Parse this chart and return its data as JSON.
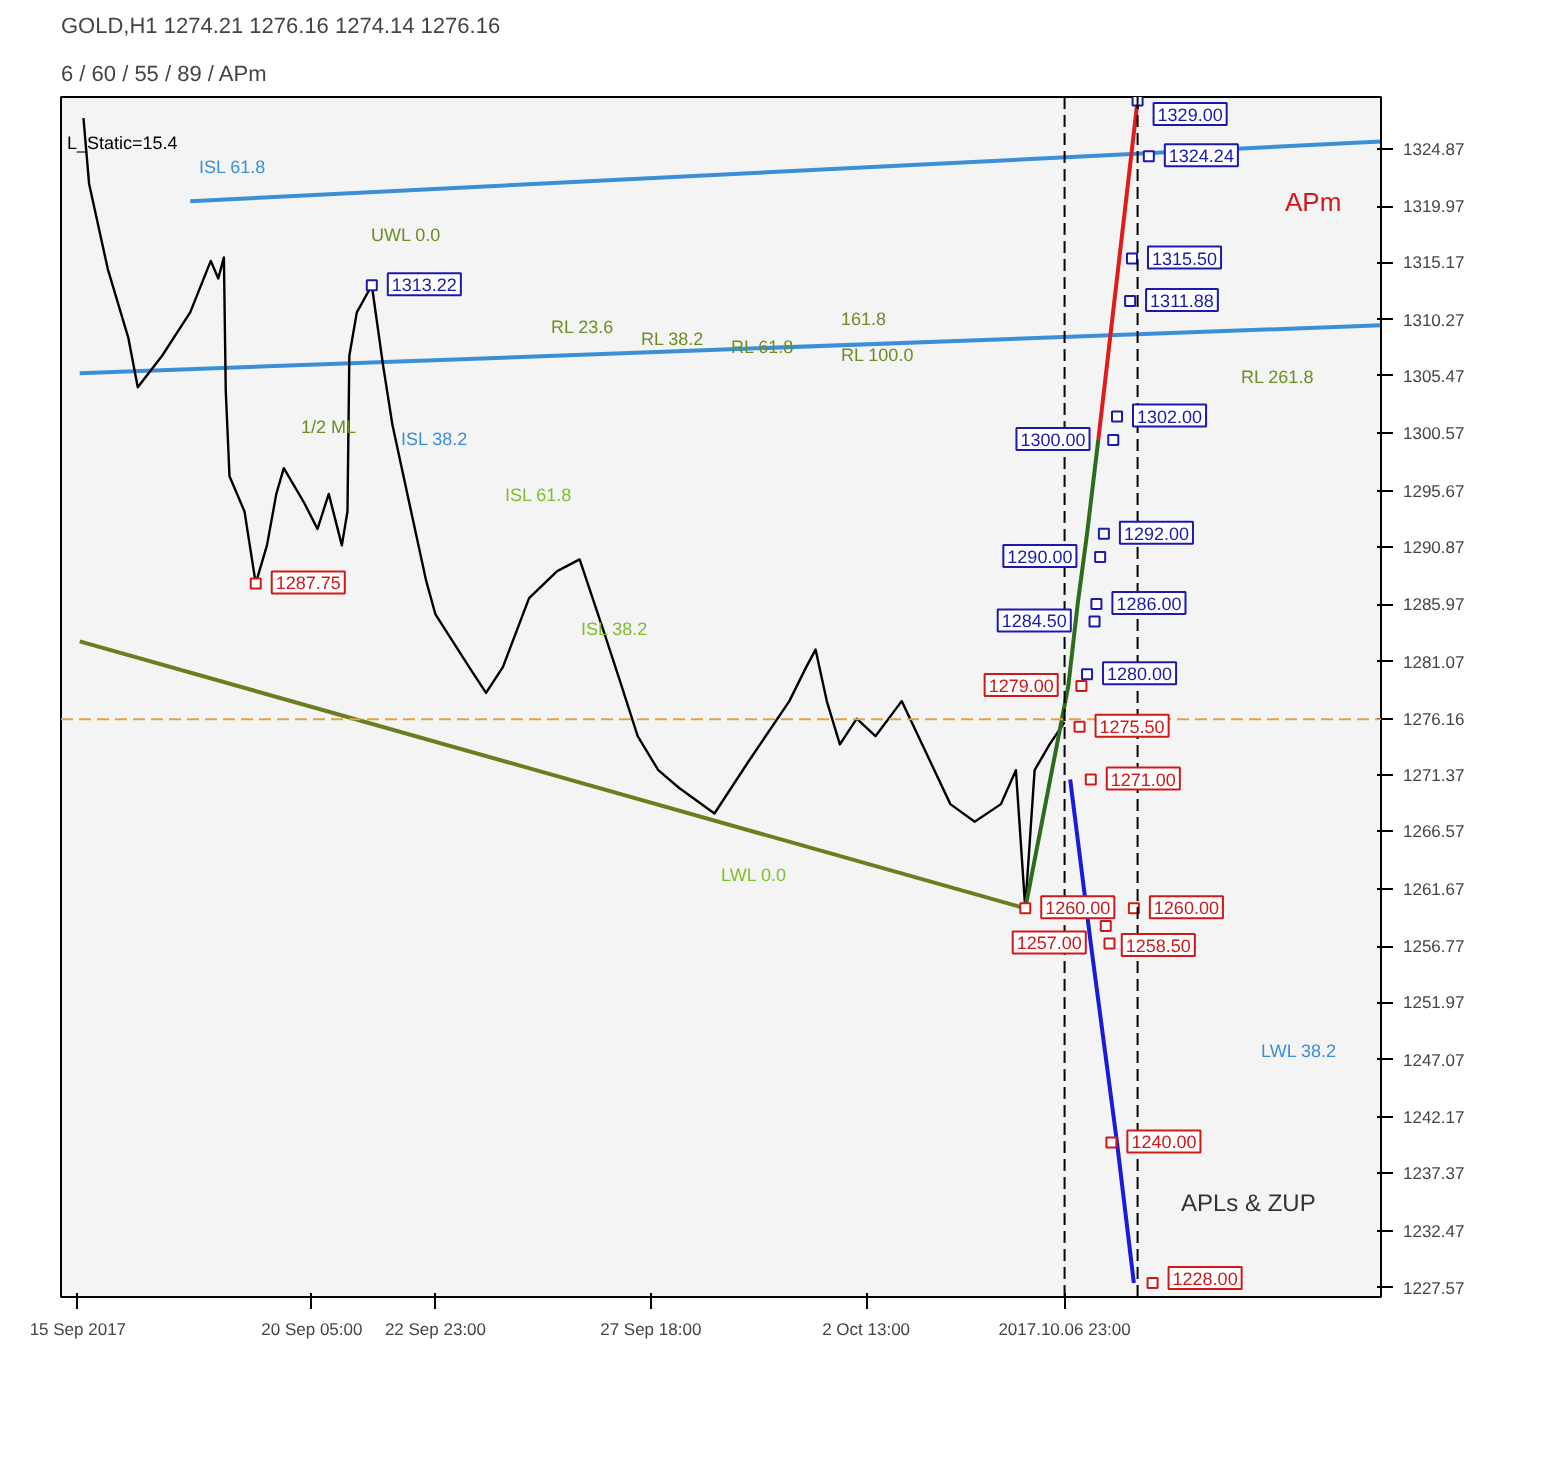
{
  "chart_data": {
    "type": "line",
    "title": "GOLD,H1  1274.21 1276.16 1274.14 1276.16",
    "subtitle": "6 / 60 / 55 / 89 / APm",
    "xlim": [
      "2017-09-14T15:00",
      "2017-10-14T00:00"
    ],
    "ylim": [
      1226.8,
      1329.3
    ],
    "xticks": [
      {
        "value": "2017-09-15T00:00",
        "label": "15 Sep 2017"
      },
      {
        "value": "2017-09-20T05:00",
        "label": "20 Sep 05:00"
      },
      {
        "value": "2017-09-22T23:00",
        "label": "22 Sep 23:00"
      },
      {
        "value": "2017-09-27T18:00",
        "label": "27 Sep 18:00"
      },
      {
        "value": "2017-10-02T13:00",
        "label": "2 Oct 13:00"
      },
      {
        "value": "2017-10-06T23:00",
        "label": "2017.10.06 23:00"
      }
    ],
    "yticks": [
      1227.57,
      1232.47,
      1237.37,
      1242.17,
      1247.07,
      1251.97,
      1256.77,
      1261.67,
      1266.57,
      1271.37,
      1276.16,
      1281.07,
      1285.97,
      1290.87,
      1295.67,
      1300.57,
      1305.47,
      1310.27,
      1315.17,
      1319.97,
      1324.87
    ],
    "grid": false,
    "series": [
      {
        "color": "#6b7d1e",
        "x": [
          "2017-09-15T01:00",
          "2017-10-06T02:00"
        ],
        "values": [
          1282.8,
          1260
        ]
      },
      {
        "color": "#3a8fd8",
        "x": [
          "2017-09-17T12:00",
          "2017-10-14T00:00"
        ],
        "values": [
          1320.4,
          1325.5
        ]
      },
      {
        "color": "#3a8fd8",
        "x": [
          "2017-09-15T01:00",
          "2017-10-14T00:00"
        ],
        "values": [
          1305.7,
          1309.8
        ]
      },
      {
        "color": "#000000",
        "x": [
          "2017-09-15T03:00",
          "2017-09-15T06:00",
          "2017-09-15T16:00",
          "2017-09-16T03:00",
          "2017-09-16T08:00",
          "2017-09-16T21:00",
          "2017-09-17T12:00",
          "2017-09-17T23:00",
          "2017-09-18T03:00",
          "2017-09-18T06:00",
          "2017-09-18T07:00",
          "2017-09-18T09:00",
          "2017-09-18T17:00",
          "2017-09-18T23:00",
          "2017-09-19T05:00",
          "2017-09-19T10:00",
          "2017-09-19T14:00",
          "2017-09-20T01:00",
          "2017-09-20T08:00",
          "2017-09-20T14:00",
          "2017-09-20T21:00",
          "2017-09-21T00:00",
          "2017-09-21T01:00",
          "2017-09-21T05:00",
          "2017-09-21T13:00",
          "2017-09-21T19:00",
          "2017-09-22T00:00",
          "2017-09-22T10:00",
          "2017-09-22T18:00",
          "2017-09-22T23:00",
          "2017-09-23T17:00",
          "2017-09-24T02:00",
          "2017-09-24T11:00",
          "2017-09-25T01:00",
          "2017-09-25T16:00",
          "2017-09-26T04:00",
          "2017-09-26T17:00",
          "2017-09-27T02:00",
          "2017-09-27T11:00",
          "2017-09-27T22:00",
          "2017-09-28T09:00",
          "2017-09-29T04:00",
          "2017-09-29T22:00",
          "2017-09-30T20:00",
          "2017-10-01T05:00",
          "2017-10-01T10:00",
          "2017-10-01T16:00",
          "2017-10-01T23:00",
          "2017-10-02T08:00",
          "2017-10-02T18:00",
          "2017-10-03T08:00",
          "2017-10-03T21:00",
          "2017-10-04T10:00",
          "2017-10-04T23:00",
          "2017-10-05T13:00",
          "2017-10-05T21:00",
          "2017-10-06T02:00",
          "2017-10-06T07:00",
          "2017-10-06T15:00",
          "2017-10-06T23:00"
        ],
        "values": [
          1327.5,
          1321.9,
          1314.6,
          1308.7,
          1304.5,
          1307.2,
          1310.9,
          1315.3,
          1313.8,
          1315.6,
          1304.2,
          1296.9,
          1293.9,
          1287.75,
          1291.0,
          1295.4,
          1297.6,
          1294.6,
          1292.4,
          1295.4,
          1291.0,
          1293.9,
          1307.2,
          1310.9,
          1313.22,
          1306.4,
          1301.3,
          1293.9,
          1288.0,
          1285.1,
          1280.6,
          1278.4,
          1280.6,
          1286.5,
          1288.8,
          1289.8,
          1283.6,
          1279.2,
          1274.7,
          1271.8,
          1270.3,
          1268.1,
          1272.5,
          1277.7,
          1280.6,
          1282.1,
          1277.7,
          1274.0,
          1276.2,
          1274.7,
          1277.7,
          1273.3,
          1268.9,
          1267.4,
          1268.9,
          1271.8,
          1260.0,
          1271.8,
          1274.0,
          1275.9
        ]
      },
      {
        "color": "#2e6b1e",
        "x": [
          "2017-10-06T02:00",
          "2017-10-07T01:00",
          "2017-10-07T06:00",
          "2017-10-07T11:00",
          "2017-10-07T17:00"
        ],
        "values": [
          1260,
          1279,
          1286,
          1292,
          1300
        ]
      },
      {
        "color": "#e01b1b",
        "x": [
          "2017-10-07T17:00",
          "2017-10-08T14:00"
        ],
        "values": [
          1300,
          1329
        ]
      },
      {
        "color": "#1a1ad8",
        "x": [
          "2017-10-07T02:00",
          "2017-10-07T13:00",
          "2017-10-08T03:00",
          "2017-10-08T12:00"
        ],
        "values": [
          1271,
          1257,
          1240,
          1228
        ]
      },
      {
        "type": "scatter",
        "color": "#1a1ab0",
        "marker": "square",
        "x": [
          "2017-10-08T14:00",
          "2017-10-08T20:00",
          "2017-10-08T11:00",
          "2017-10-08T10:00",
          "2017-10-08T03:00",
          "2017-10-08T01:00",
          "2017-10-07T20:00",
          "2017-10-07T18:00",
          "2017-10-07T16:00",
          "2017-10-07T15:00",
          "2017-10-07T11:00",
          "2017-09-21T13:00"
        ],
        "values": [
          1329.0,
          1324.24,
          1315.5,
          1311.88,
          1302.0,
          1300.0,
          1292.0,
          1290.0,
          1286.0,
          1284.5,
          1280.0,
          1313.22
        ],
        "value_labels": [
          "1329.00",
          "1324.24",
          "1315.50",
          "1311.88",
          "1302.00",
          "1300.00",
          "1292.00",
          "1290.00",
          "1286.00",
          "1284.50",
          "1280.00",
          "1313.22"
        ]
      },
      {
        "type": "scatter",
        "color": "#d01818",
        "marker": "square",
        "x": [
          "2017-10-07T08:00",
          "2017-10-07T07:00",
          "2017-10-07T13:00",
          "2017-10-06T02:00",
          "2017-10-07T21:00",
          "2017-10-07T23:00",
          "2017-10-08T00:00",
          "2017-10-08T12:00",
          "2017-10-08T22:00",
          "2017-09-18T23:00"
        ],
        "values": [
          1279.0,
          1275.5,
          1271.0,
          1260.0,
          1258.5,
          1257.0,
          1240.0,
          1260.0,
          1228.0,
          1287.75
        ],
        "value_labels": [
          "1279.00",
          "1275.50",
          "1271.00",
          "1260.00",
          "1258.50",
          "1257.00",
          "1240.00",
          "1260.00",
          "1228.00",
          "1287.75"
        ]
      }
    ],
    "ref_lines": [
      {
        "axis": "y",
        "value": 1276.16,
        "color": "#e8a040",
        "line_style": "dashed"
      },
      {
        "axis": "x",
        "value": "2017-10-06T23:00",
        "color": "#000000",
        "line_style": "dashed"
      },
      {
        "axis": "x",
        "value": "2017-10-08T14:00",
        "color": "#000000",
        "line_style": "dashed"
      }
    ],
    "annotations": [
      "L_Static=15.4",
      "APm",
      "APLs & ZUP",
      "ISL 61.8",
      "UWL 0.0",
      "RL 23.6",
      "RL 38.2",
      "RL 61.8",
      "RL 100.0",
      "1/2 ML",
      "ISL 38.2",
      "ISL 61.8",
      "ISL 38.2",
      "LWL 0.0",
      "LWL 38.2",
      "161.8",
      "RL 261.8"
    ]
  }
}
